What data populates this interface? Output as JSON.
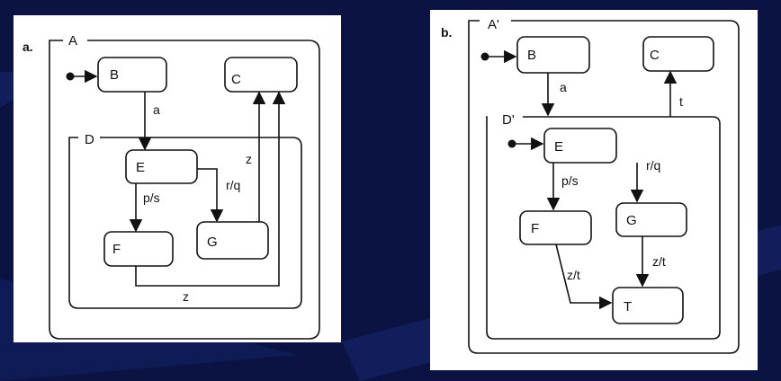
{
  "diagram_a": {
    "tag": "a.",
    "outer_state": "A",
    "inner_state": "D",
    "states": {
      "b": "B",
      "c": "C",
      "e": "E",
      "f": "F",
      "g": "G"
    },
    "transitions": {
      "b_to_e": "a",
      "e_to_f": "p/s",
      "e_to_g": "r/q",
      "g_to_c": "z",
      "f_to_c": "z"
    }
  },
  "diagram_b": {
    "tag": "b.",
    "outer_state": "A'",
    "inner_state": "D'",
    "states": {
      "b": "B",
      "c": "C",
      "e": "E",
      "f": "F",
      "g": "G",
      "t": "T"
    },
    "transitions": {
      "b_to_d": "a",
      "d_to_c": "t",
      "e_to_f": "p/s",
      "e_to_g": "r/q",
      "f_to_t": "z/t",
      "g_to_t": "z/t"
    }
  },
  "colors": {
    "background": "#0a1342",
    "panel": "#ffffff",
    "ink": "#111111"
  }
}
